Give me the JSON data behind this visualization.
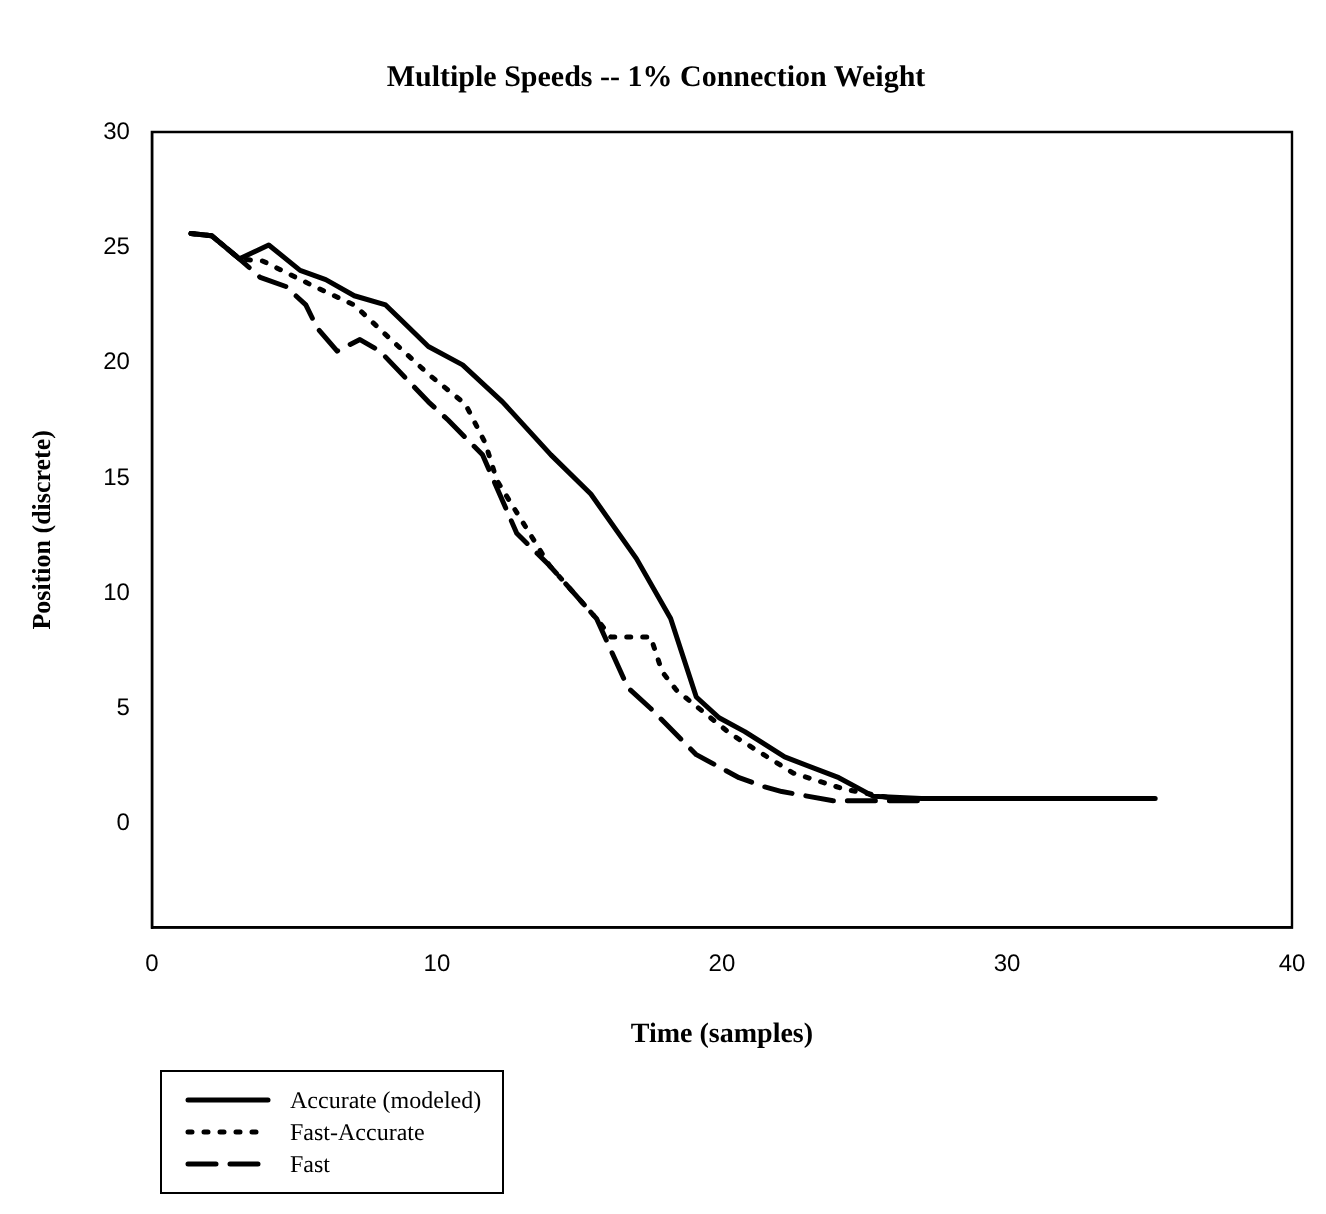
{
  "chart_data": {
    "type": "line",
    "title": "Multiple Speeds -- 1% Connection Weight",
    "xlabel": "Time (samples)",
    "ylabel": "Position (discrete)",
    "xlim": [
      0,
      40
    ],
    "xticks": [
      0,
      10,
      20,
      30,
      40
    ],
    "ylim": [
      -4.5,
      30
    ],
    "yticks": [
      0,
      5,
      10,
      15,
      20,
      25,
      30
    ],
    "grid": false,
    "legend": "bottom left",
    "marker": "none",
    "series": [
      {
        "name": "Accurate (modeled)",
        "color": "#000000",
        "line_style": "solid",
        "x": [
          1.37,
          2.1,
          3.07,
          4.1,
          5.2,
          6.1,
          7.1,
          8.2,
          8.7,
          9.7,
          10.9,
          12.3,
          14.0,
          15.4,
          17.0,
          18.2,
          19.1,
          19.9,
          20.8,
          22.2,
          24.1,
          25.3,
          27,
          30,
          35.2
        ],
        "values": [
          25.6,
          25.5,
          24.5,
          25.1,
          24.0,
          23.6,
          22.9,
          22.5,
          21.9,
          20.7,
          19.9,
          18.3,
          16.0,
          14.3,
          11.5,
          8.9,
          5.5,
          4.6,
          4.0,
          2.9,
          2.0,
          1.2,
          1.1,
          1.1,
          1.1
        ]
      },
      {
        "name": "Fast-Accurate",
        "color": "#000000",
        "line_style": "dotted",
        "x": [
          1.37,
          2.1,
          3.07,
          3.9,
          5.7,
          7.1,
          8.3,
          9.7,
          11.0,
          11.7,
          12.1,
          13.95,
          15.6,
          16.1,
          17.5,
          17.9,
          18.4,
          20.3,
          22.5,
          24.3,
          26
        ],
        "values": [
          25.6,
          25.5,
          24.5,
          24.4,
          23.3,
          22.5,
          21.1,
          19.5,
          18.2,
          16.5,
          14.9,
          11.2,
          8.9,
          8.1,
          8.1,
          6.6,
          5.8,
          3.9,
          2.2,
          1.5,
          1.1
        ]
      },
      {
        "name": "Fast",
        "color": "#000000",
        "line_style": "dashed",
        "x": [
          1.37,
          2.1,
          3.07,
          3.8,
          4.7,
          5.4,
          5.8,
          6.5,
          7.3,
          8.0,
          9.7,
          10.4,
          11.6,
          12.8,
          13.95,
          15.6,
          16.7,
          17.5,
          19.1,
          20.6,
          21.5,
          22.1,
          23.9,
          25,
          27
        ],
        "values": [
          25.6,
          25.5,
          24.5,
          23.7,
          23.3,
          22.5,
          21.5,
          20.5,
          21.0,
          20.5,
          18.3,
          17.5,
          16.0,
          12.6,
          11.2,
          8.9,
          5.9,
          5.0,
          3.0,
          2.0,
          1.6,
          1.4,
          1.0,
          1.0,
          1.0
        ]
      }
    ]
  }
}
